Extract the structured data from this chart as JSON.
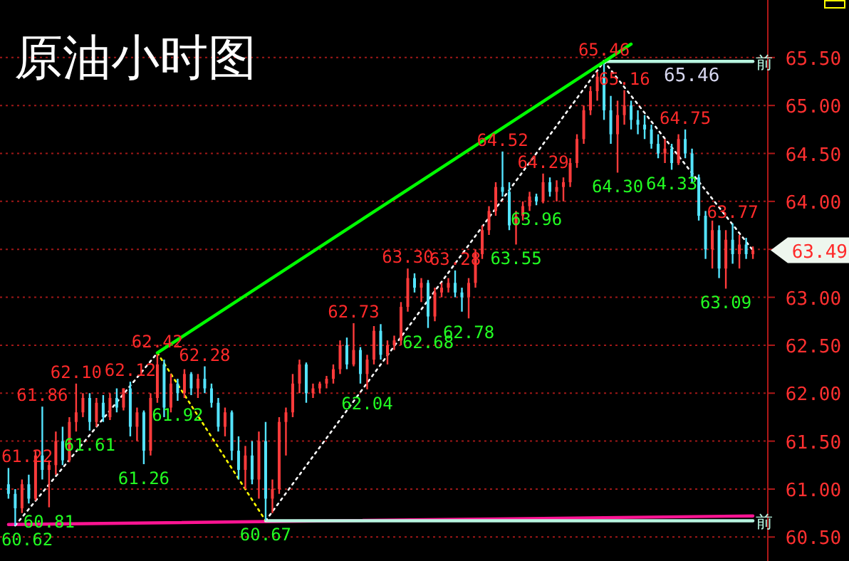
{
  "chart_data": {
    "type": "candlestick",
    "title": "原油小时图",
    "categories": [
      null,
      null,
      null,
      null,
      null,
      null,
      null,
      null,
      null,
      null,
      null,
      null,
      null,
      null,
      null,
      null,
      null,
      null,
      null,
      null,
      null,
      null,
      null,
      null,
      null,
      null,
      null,
      null,
      null,
      null,
      null,
      null,
      null,
      null,
      null,
      null,
      null,
      null,
      null,
      null,
      null,
      null,
      null,
      null,
      null,
      null,
      null,
      null,
      null,
      null,
      null,
      null,
      null,
      null,
      null,
      null,
      null,
      null,
      null,
      null,
      null,
      null,
      null,
      null,
      null,
      null,
      null,
      null,
      null,
      null,
      null,
      null,
      null,
      null,
      null,
      null,
      null,
      null,
      null,
      null,
      null,
      null,
      null,
      null,
      null,
      null,
      null,
      null,
      null,
      null,
      null,
      null,
      null,
      null,
      null,
      null,
      null,
      null,
      null,
      null,
      null,
      null,
      null,
      null,
      null,
      null,
      null,
      null,
      null,
      null,
      null
    ],
    "ohlc": [
      [
        61.05,
        61.22,
        60.9,
        60.95
      ],
      [
        60.95,
        61.0,
        60.62,
        60.8
      ],
      [
        60.8,
        61.1,
        60.75,
        61.05
      ],
      [
        61.05,
        61.15,
        60.85,
        60.9
      ],
      [
        60.9,
        61.4,
        60.88,
        61.35
      ],
      [
        61.35,
        61.86,
        61.1,
        61.2
      ],
      [
        61.2,
        61.3,
        60.81,
        61.25
      ],
      [
        61.25,
        61.6,
        61.15,
        61.5
      ],
      [
        61.5,
        61.65,
        61.25,
        61.3
      ],
      [
        61.3,
        61.75,
        61.28,
        61.7
      ],
      [
        61.7,
        62.1,
        61.6,
        61.8
      ],
      [
        61.8,
        62.0,
        61.75,
        61.95
      ],
      [
        61.95,
        62.0,
        61.61,
        61.7
      ],
      [
        61.7,
        61.95,
        61.65,
        61.9
      ],
      [
        61.9,
        61.98,
        61.7,
        61.75
      ],
      [
        61.75,
        62.0,
        61.72,
        61.95
      ],
      [
        61.95,
        62.05,
        61.8,
        61.85
      ],
      [
        61.85,
        62.05,
        61.82,
        62.05
      ],
      [
        62.05,
        62.12,
        61.55,
        61.65
      ],
      [
        61.65,
        61.85,
        61.5,
        61.8
      ],
      [
        61.8,
        61.82,
        61.26,
        61.4
      ],
      [
        61.4,
        62.0,
        61.35,
        61.95
      ],
      [
        61.95,
        62.42,
        61.9,
        62.3
      ],
      [
        62.3,
        62.35,
        61.75,
        61.85
      ],
      [
        61.85,
        62.2,
        61.8,
        62.1
      ],
      [
        62.1,
        62.15,
        61.92,
        62.0
      ],
      [
        62.0,
        62.25,
        61.95,
        62.2
      ],
      [
        62.2,
        62.22,
        61.98,
        62.05
      ],
      [
        62.05,
        62.2,
        61.95,
        62.15
      ],
      [
        62.15,
        62.28,
        62.0,
        62.05
      ],
      [
        62.05,
        62.1,
        61.85,
        61.9
      ],
      [
        61.9,
        61.95,
        61.6,
        61.65
      ],
      [
        61.65,
        61.85,
        61.55,
        61.8
      ],
      [
        61.8,
        61.82,
        61.3,
        61.4
      ],
      [
        61.4,
        61.55,
        61.1,
        61.2
      ],
      [
        61.2,
        61.45,
        61.0,
        61.35
      ],
      [
        61.35,
        61.5,
        61.05,
        61.1
      ],
      [
        61.1,
        61.6,
        60.9,
        61.5
      ],
      [
        61.5,
        61.7,
        60.67,
        60.9
      ],
      [
        60.9,
        61.1,
        60.75,
        61.0
      ],
      [
        61.0,
        61.75,
        60.95,
        61.7
      ],
      [
        61.7,
        61.85,
        61.35,
        61.8
      ],
      [
        61.8,
        62.2,
        61.75,
        62.1
      ],
      [
        62.1,
        62.35,
        62.0,
        62.3
      ],
      [
        62.3,
        62.32,
        61.9,
        62.0
      ],
      [
        62.0,
        62.1,
        61.95,
        62.05
      ],
      [
        62.05,
        62.12,
        62.0,
        62.1
      ],
      [
        62.1,
        62.18,
        62.05,
        62.15
      ],
      [
        62.15,
        62.3,
        62.1,
        62.25
      ],
      [
        62.25,
        62.55,
        62.2,
        62.5
      ],
      [
        62.5,
        62.58,
        62.25,
        62.3
      ],
      [
        62.3,
        62.73,
        62.28,
        62.45
      ],
      [
        62.45,
        62.48,
        62.1,
        62.2
      ],
      [
        62.2,
        62.4,
        62.04,
        62.35
      ],
      [
        62.35,
        62.7,
        62.3,
        62.65
      ],
      [
        62.65,
        62.72,
        62.35,
        62.4
      ],
      [
        62.4,
        62.55,
        62.3,
        62.5
      ],
      [
        62.5,
        62.6,
        62.45,
        62.55
      ],
      [
        62.55,
        62.95,
        62.5,
        62.9
      ],
      [
        62.9,
        63.3,
        62.85,
        63.2
      ],
      [
        63.2,
        63.25,
        63.05,
        63.1
      ],
      [
        63.1,
        63.2,
        62.95,
        63.15
      ],
      [
        63.15,
        63.18,
        62.68,
        62.8
      ],
      [
        62.8,
        63.1,
        62.75,
        63.05
      ],
      [
        63.05,
        63.15,
        63.0,
        63.1
      ],
      [
        63.1,
        63.2,
        63.05,
        63.15
      ],
      [
        63.15,
        63.28,
        63.0,
        63.05
      ],
      [
        63.05,
        63.1,
        62.85,
        63.0
      ],
      [
        63.0,
        63.2,
        62.78,
        63.15
      ],
      [
        63.15,
        63.5,
        63.1,
        63.45
      ],
      [
        63.45,
        63.75,
        63.4,
        63.7
      ],
      [
        63.7,
        63.95,
        63.65,
        63.9
      ],
      [
        63.9,
        64.2,
        63.85,
        64.15
      ],
      [
        64.15,
        64.52,
        64.05,
        64.1
      ],
      [
        64.1,
        64.2,
        63.7,
        63.75
      ],
      [
        63.75,
        63.9,
        63.55,
        63.85
      ],
      [
        63.85,
        64.0,
        63.8,
        63.95
      ],
      [
        63.95,
        64.1,
        63.9,
        64.05
      ],
      [
        64.05,
        64.08,
        63.96,
        64.0
      ],
      [
        64.0,
        64.29,
        63.98,
        64.2
      ],
      [
        64.2,
        64.25,
        64.05,
        64.1
      ],
      [
        64.1,
        64.22,
        64.0,
        64.15
      ],
      [
        64.15,
        64.25,
        64.0,
        64.2
      ],
      [
        64.2,
        64.45,
        64.15,
        64.4
      ],
      [
        64.4,
        64.7,
        64.35,
        64.65
      ],
      [
        64.65,
        65.0,
        64.6,
        64.95
      ],
      [
        64.95,
        65.2,
        64.9,
        65.15
      ],
      [
        65.15,
        65.35,
        65.05,
        65.3
      ],
      [
        65.3,
        65.46,
        64.85,
        64.95
      ],
      [
        64.95,
        65.1,
        64.6,
        64.7
      ],
      [
        64.7,
        65.05,
        64.3,
        64.9
      ],
      [
        64.9,
        65.16,
        64.8,
        65.0
      ],
      [
        65.0,
        65.05,
        64.75,
        64.85
      ],
      [
        64.85,
        64.95,
        64.7,
        64.8
      ],
      [
        64.8,
        64.9,
        64.65,
        64.75
      ],
      [
        64.75,
        64.8,
        64.55,
        64.6
      ],
      [
        64.6,
        64.7,
        64.45,
        64.5
      ],
      [
        64.5,
        64.65,
        64.4,
        64.55
      ],
      [
        64.55,
        64.6,
        64.33,
        64.4
      ],
      [
        64.4,
        64.7,
        64.38,
        64.65
      ],
      [
        64.65,
        64.75,
        64.45,
        64.5
      ],
      [
        64.5,
        64.55,
        64.2,
        64.25
      ],
      [
        64.25,
        64.28,
        63.8,
        63.85
      ],
      [
        63.85,
        63.9,
        63.4,
        63.5
      ],
      [
        63.5,
        63.8,
        63.3,
        63.7
      ],
      [
        63.7,
        63.75,
        63.2,
        63.3
      ],
      [
        63.3,
        63.7,
        63.09,
        63.6
      ],
      [
        63.6,
        63.77,
        63.35,
        63.45
      ],
      [
        63.45,
        63.65,
        63.3,
        63.55
      ],
      [
        63.55,
        63.62,
        63.4,
        63.45
      ],
      [
        63.45,
        63.53,
        63.4,
        63.49
      ]
    ],
    "series": [
      {
        "type": "line",
        "color": "#00ff00",
        "values": [
          null,
          null,
          null,
          null,
          null,
          null,
          null,
          null,
          null,
          null,
          null,
          null,
          null,
          null,
          null,
          null,
          null,
          null,
          null,
          null,
          null,
          null,
          62.42,
          null,
          null,
          null,
          null,
          null,
          null,
          null,
          null,
          null,
          null,
          null,
          null,
          null,
          null,
          null,
          null,
          null,
          null,
          null,
          null,
          null,
          null,
          null,
          null,
          null,
          null,
          null,
          null,
          null,
          null,
          null,
          null,
          null,
          null,
          null,
          null,
          null,
          null,
          null,
          null,
          null,
          null,
          null,
          null,
          null,
          null,
          null,
          null,
          null,
          null,
          null,
          null,
          null,
          null,
          null,
          null,
          null,
          null,
          null,
          null,
          null,
          null,
          null,
          null,
          null,
          null,
          null,
          null,
          null,
          65.64,
          null,
          null,
          null,
          null,
          null,
          null,
          null,
          null,
          null,
          null,
          null,
          null,
          null,
          null,
          null,
          null,
          null,
          null
        ]
      },
      {
        "type": "line",
        "color": "#ff1493",
        "values": [
          60.63,
          null,
          null,
          null,
          null,
          null,
          null,
          null,
          null,
          null,
          null,
          null,
          null,
          null,
          null,
          null,
          null,
          null,
          null,
          null,
          null,
          null,
          null,
          null,
          null,
          null,
          null,
          null,
          null,
          null,
          null,
          null,
          null,
          null,
          null,
          null,
          null,
          null,
          null,
          null,
          null,
          null,
          null,
          null,
          null,
          null,
          null,
          null,
          null,
          null,
          null,
          null,
          null,
          null,
          null,
          null,
          null,
          null,
          null,
          null,
          null,
          null,
          null,
          null,
          null,
          null,
          null,
          null,
          null,
          null,
          null,
          null,
          null,
          null,
          null,
          null,
          null,
          null,
          null,
          null,
          null,
          null,
          null,
          null,
          null,
          null,
          null,
          null,
          null,
          null,
          null,
          null,
          null,
          null,
          null,
          null,
          null,
          null,
          null,
          null,
          null,
          null,
          null,
          null,
          null,
          null,
          null,
          null,
          null,
          null,
          60.72
        ]
      },
      {
        "type": "line",
        "name": "前",
        "color": "#b8f5e0",
        "values": [
          null,
          null,
          null,
          null,
          null,
          null,
          null,
          null,
          null,
          null,
          null,
          null,
          null,
          null,
          null,
          null,
          null,
          null,
          null,
          null,
          null,
          null,
          null,
          null,
          null,
          null,
          null,
          null,
          null,
          null,
          null,
          null,
          null,
          null,
          null,
          null,
          null,
          null,
          60.67,
          null,
          null,
          null,
          null,
          null,
          null,
          null,
          null,
          null,
          null,
          null,
          null,
          null,
          null,
          null,
          null,
          null,
          null,
          null,
          null,
          null,
          null,
          null,
          null,
          null,
          null,
          null,
          null,
          null,
          null,
          null,
          null,
          null,
          null,
          null,
          null,
          null,
          null,
          null,
          null,
          null,
          null,
          null,
          null,
          null,
          null,
          null,
          null,
          null,
          null,
          null,
          null,
          null,
          null,
          null,
          null,
          null,
          null,
          null,
          null,
          null,
          null,
          null,
          null,
          null,
          null,
          null,
          null,
          null,
          null,
          null,
          60.67
        ]
      },
      {
        "type": "line",
        "name": "前",
        "color": "#b8f5e0",
        "values": [
          null,
          null,
          null,
          null,
          null,
          null,
          null,
          null,
          null,
          null,
          null,
          null,
          null,
          null,
          null,
          null,
          null,
          null,
          null,
          null,
          null,
          null,
          null,
          null,
          null,
          null,
          null,
          null,
          null,
          null,
          null,
          null,
          null,
          null,
          null,
          null,
          null,
          null,
          null,
          null,
          null,
          null,
          null,
          null,
          null,
          null,
          null,
          null,
          null,
          null,
          null,
          null,
          null,
          null,
          null,
          null,
          null,
          null,
          null,
          null,
          null,
          null,
          null,
          null,
          null,
          null,
          null,
          null,
          null,
          null,
          null,
          null,
          null,
          null,
          null,
          null,
          null,
          null,
          null,
          null,
          null,
          null,
          null,
          null,
          null,
          null,
          null,
          null,
          65.46,
          null,
          null,
          null,
          null,
          null,
          null,
          null,
          null,
          null,
          null,
          null,
          null,
          null,
          null,
          null,
          null,
          null,
          null,
          null,
          null,
          null,
          65.46
        ]
      },
      {
        "type": "line",
        "color": "#ffffff",
        "line_style": "dotted",
        "values": [
          null,
          60.62,
          null,
          null,
          null,
          null,
          null,
          null,
          null,
          null,
          null,
          null,
          null,
          null,
          null,
          null,
          null,
          null,
          null,
          null,
          null,
          null,
          62.42,
          null,
          null,
          null,
          null,
          null,
          null,
          null,
          null,
          null,
          null,
          null,
          null,
          null,
          null,
          null,
          null,
          null,
          null,
          null,
          null,
          null,
          null,
          null,
          null,
          null,
          null,
          null,
          null,
          null,
          null,
          null,
          null,
          null,
          null,
          null,
          null,
          null,
          null,
          null,
          null,
          null,
          null,
          null,
          null,
          null,
          null,
          null,
          null,
          null,
          null,
          null,
          null,
          null,
          null,
          null,
          null,
          null,
          null,
          null,
          null,
          null,
          null,
          null,
          null,
          null,
          null,
          null,
          null,
          null,
          null,
          null,
          null,
          null,
          null,
          null,
          null,
          null,
          null,
          null,
          null,
          null,
          null,
          null,
          null,
          null,
          null,
          null,
          null
        ]
      },
      {
        "type": "line",
        "color": "#ffff00",
        "line_style": "dotted",
        "values": [
          null,
          null,
          null,
          null,
          null,
          null,
          null,
          null,
          null,
          null,
          null,
          null,
          null,
          null,
          null,
          null,
          null,
          null,
          null,
          null,
          null,
          null,
          62.42,
          null,
          null,
          null,
          null,
          null,
          null,
          null,
          null,
          null,
          null,
          null,
          null,
          null,
          null,
          null,
          60.67,
          null,
          null,
          null,
          null,
          null,
          null,
          null,
          null,
          null,
          null,
          null,
          null,
          null,
          null,
          null,
          null,
          null,
          null,
          null,
          null,
          null,
          null,
          null,
          null,
          null,
          null,
          null,
          null,
          null,
          null,
          null,
          null,
          null,
          null,
          null,
          null,
          null,
          null,
          null,
          null,
          null,
          null,
          null,
          null,
          null,
          null,
          null,
          null,
          null,
          null,
          null,
          null,
          null,
          null,
          null,
          null,
          null,
          null,
          null,
          null,
          null,
          null,
          null,
          null,
          null,
          null,
          null,
          null,
          null,
          null,
          null,
          null
        ]
      },
      {
        "type": "line",
        "color": "#ffffff",
        "line_style": "dotted",
        "values": [
          null,
          null,
          null,
          null,
          null,
          null,
          null,
          null,
          null,
          null,
          null,
          null,
          null,
          null,
          null,
          null,
          null,
          null,
          null,
          null,
          null,
          null,
          null,
          null,
          null,
          null,
          null,
          null,
          null,
          null,
          null,
          null,
          null,
          null,
          null,
          null,
          null,
          null,
          60.67,
          null,
          null,
          null,
          null,
          null,
          null,
          null,
          null,
          null,
          null,
          null,
          null,
          null,
          null,
          null,
          null,
          null,
          null,
          null,
          null,
          null,
          null,
          null,
          null,
          null,
          null,
          null,
          null,
          null,
          null,
          null,
          null,
          null,
          null,
          null,
          null,
          null,
          null,
          null,
          null,
          null,
          null,
          null,
          null,
          null,
          null,
          null,
          null,
          null,
          65.46,
          null,
          null,
          null,
          null,
          null,
          null,
          null,
          null,
          null,
          null,
          null,
          null,
          null,
          null,
          null,
          null,
          null,
          null,
          null,
          null,
          null,
          63.49
        ]
      }
    ],
    "annotations": [
      {
        "text": "61.22",
        "y": 61.22
      },
      {
        "text": "60.62",
        "y": 60.62
      },
      {
        "text": "61.86",
        "y": 61.86
      },
      {
        "text": "60.81",
        "y": 60.81
      },
      {
        "text": "62.10",
        "y": 62.1
      },
      {
        "text": "61.61",
        "y": 61.61
      },
      {
        "text": "62.12",
        "y": 62.12
      },
      {
        "text": "61.26",
        "y": 61.26
      },
      {
        "text": "62.42",
        "y": 62.42
      },
      {
        "text": "61.92",
        "y": 61.92
      },
      {
        "text": "62.28",
        "y": 62.28
      },
      {
        "text": "60.67",
        "y": 60.67
      },
      {
        "text": "62.73",
        "y": 62.73
      },
      {
        "text": "62.04",
        "y": 62.04
      },
      {
        "text": "63.30",
        "y": 63.3
      },
      {
        "text": "62.68",
        "y": 62.68
      },
      {
        "text": "63.28",
        "y": 63.28
      },
      {
        "text": "62.78",
        "y": 62.78
      },
      {
        "text": "64.52",
        "y": 64.52
      },
      {
        "text": "63.55",
        "y": 63.55
      },
      {
        "text": "64.29",
        "y": 64.29
      },
      {
        "text": "63.96",
        "y": 63.96
      },
      {
        "text": "65.46",
        "y": 65.46
      },
      {
        "text": "64.30",
        "y": 64.3
      },
      {
        "text": "65.16",
        "y": 65.16
      },
      {
        "text": "64.75",
        "y": 64.75
      },
      {
        "text": "64.33",
        "y": 64.33
      },
      {
        "text": "63.77",
        "y": 63.77
      },
      {
        "text": "63.09",
        "y": 63.09
      },
      {
        "text": "65.46",
        "y": 65.46
      },
      "63.49"
    ],
    "ylim": [
      60.25,
      66.1
    ],
    "yticks": [
      {
        "value": 60.5,
        "label": "60.50"
      },
      {
        "value": 61,
        "label": "61.00"
      },
      {
        "value": 61.5,
        "label": "61.50"
      },
      {
        "value": 62,
        "label": "62.00"
      },
      {
        "value": 62.5,
        "label": "62.50"
      },
      {
        "value": 63,
        "label": "63.00"
      },
      {
        "value": 63.5,
        "label": null
      },
      {
        "value": 64,
        "label": "64.00"
      },
      {
        "value": 64.5,
        "label": "64.50"
      },
      {
        "value": 65,
        "label": "65.00"
      },
      {
        "value": 65.5,
        "label": "65.50"
      }
    ],
    "grid": "y",
    "tick_labels": "y"
  }
}
